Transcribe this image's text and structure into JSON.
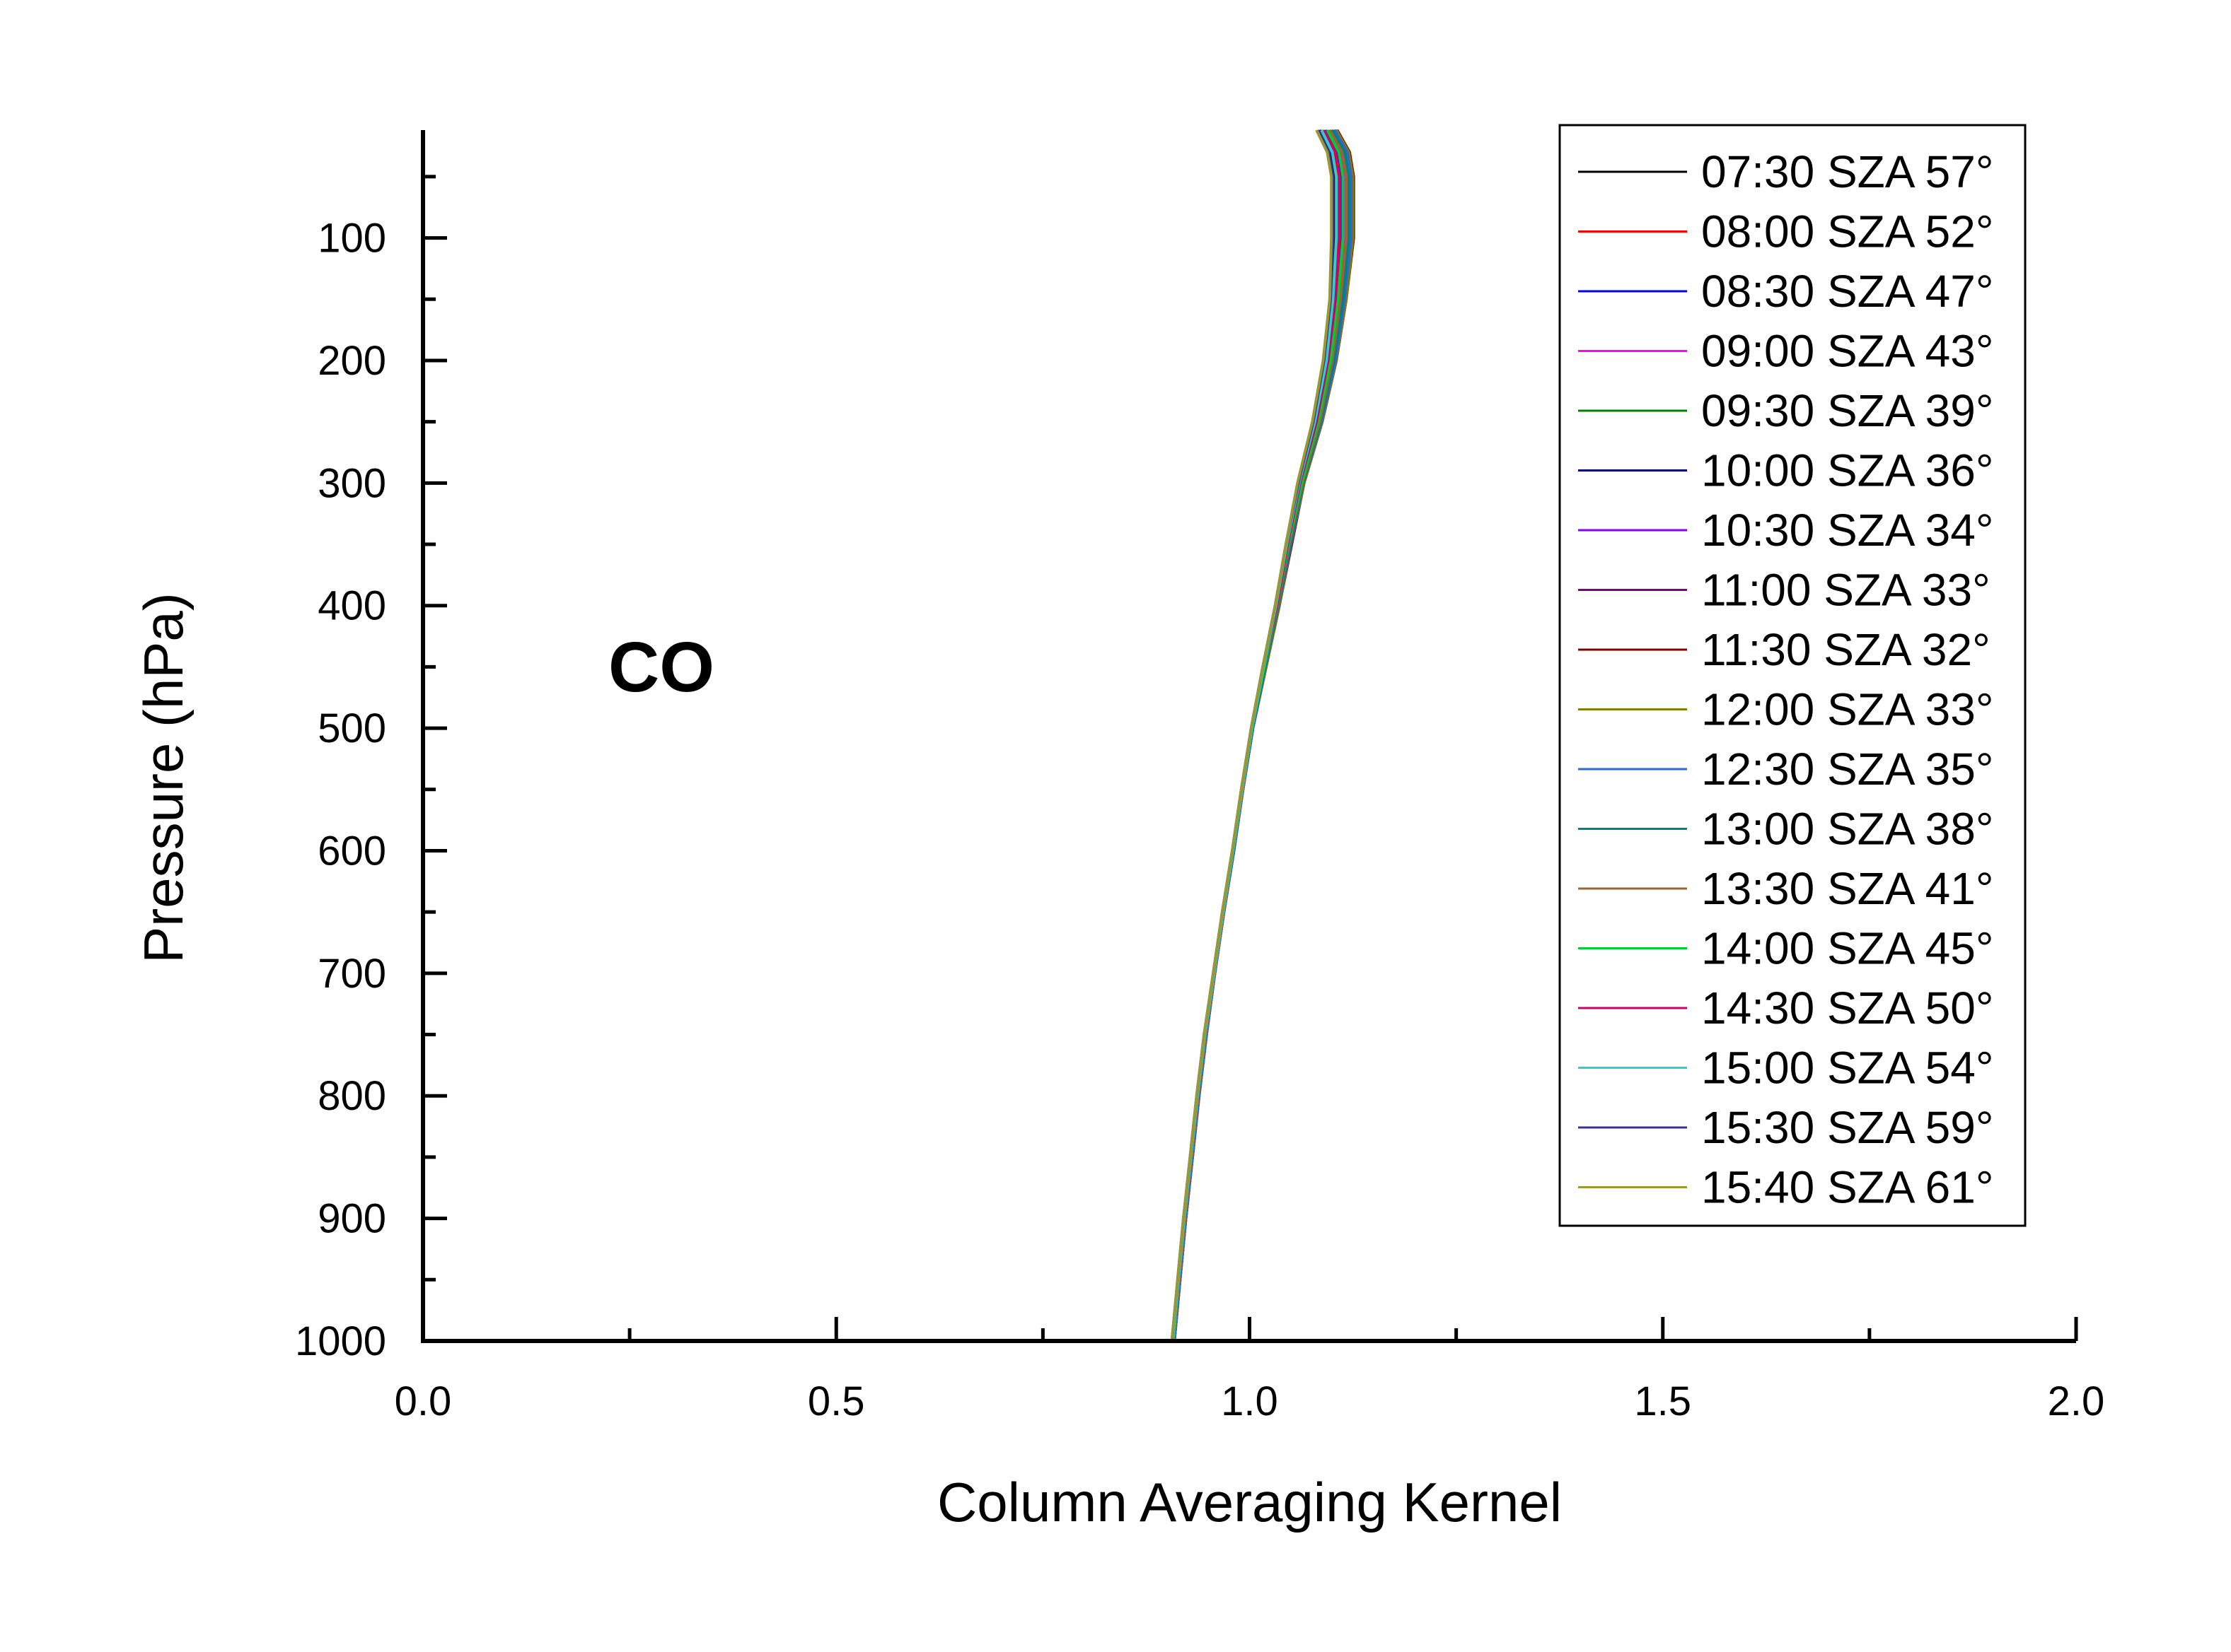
{
  "chart_data": {
    "type": "line",
    "xlabel": "Column Averaging Kernel",
    "ylabel": "Pressure (hPa)",
    "annotation": "CO",
    "xlim": [
      0.0,
      2.0
    ],
    "ylim": [
      12,
      1000
    ],
    "y_inverted": true,
    "x_ticks": [
      "0.0",
      "0.5",
      "1.0",
      "1.5",
      "2.0"
    ],
    "y_ticks": [
      "100",
      "200",
      "300",
      "400",
      "500",
      "600",
      "700",
      "800",
      "900",
      "1000"
    ],
    "legend_position": "top-right",
    "grid": false,
    "pressure": [
      12,
      30,
      50,
      100,
      150,
      200,
      250,
      300,
      350,
      400,
      450,
      500,
      550,
      600,
      650,
      700,
      750,
      800,
      850,
      900,
      950,
      1000
    ],
    "series": [
      {
        "name": "07:30 SZA 57°",
        "color": "#000000",
        "values": [
          1.085,
          1.098,
          1.103,
          1.103,
          1.1,
          1.092,
          1.078,
          1.06,
          1.045,
          1.032,
          1.017,
          1.003,
          0.991,
          0.98,
          0.968,
          0.957,
          0.946,
          0.937,
          0.929,
          0.921,
          0.914,
          0.907
        ]
      },
      {
        "name": "08:00 SZA 52°",
        "color": "#ff0000",
        "values": [
          1.088,
          1.102,
          1.107,
          1.107,
          1.103,
          1.094,
          1.08,
          1.061,
          1.046,
          1.033,
          1.017,
          1.003,
          0.991,
          0.98,
          0.968,
          0.957,
          0.946,
          0.937,
          0.929,
          0.921,
          0.914,
          0.907
        ]
      },
      {
        "name": "08:30 SZA 47°",
        "color": "#0000ff",
        "values": [
          1.092,
          1.106,
          1.111,
          1.111,
          1.106,
          1.097,
          1.082,
          1.062,
          1.047,
          1.033,
          1.018,
          1.003,
          0.991,
          0.98,
          0.968,
          0.957,
          0.946,
          0.937,
          0.929,
          0.921,
          0.914,
          0.908
        ]
      },
      {
        "name": "09:00 SZA 43°",
        "color": "#ff00ff",
        "values": [
          1.096,
          1.11,
          1.115,
          1.115,
          1.109,
          1.099,
          1.084,
          1.063,
          1.048,
          1.034,
          1.018,
          1.003,
          0.992,
          0.98,
          0.969,
          0.958,
          0.947,
          0.938,
          0.93,
          0.922,
          0.915,
          0.908
        ]
      },
      {
        "name": "09:30 SZA 39°",
        "color": "#008000",
        "values": [
          1.099,
          1.114,
          1.119,
          1.119,
          1.112,
          1.101,
          1.085,
          1.064,
          1.049,
          1.035,
          1.019,
          1.004,
          0.992,
          0.981,
          0.969,
          0.958,
          0.947,
          0.938,
          0.93,
          0.922,
          0.915,
          0.908
        ]
      },
      {
        "name": "10:00 SZA 36°",
        "color": "#000080",
        "values": [
          1.102,
          1.117,
          1.122,
          1.122,
          1.114,
          1.103,
          1.086,
          1.065,
          1.05,
          1.035,
          1.019,
          1.004,
          0.992,
          0.981,
          0.969,
          0.958,
          0.947,
          0.938,
          0.93,
          0.922,
          0.915,
          0.909
        ]
      },
      {
        "name": "10:30 SZA 34°",
        "color": "#8000ff",
        "values": [
          1.104,
          1.119,
          1.124,
          1.124,
          1.116,
          1.104,
          1.087,
          1.066,
          1.05,
          1.036,
          1.02,
          1.004,
          0.992,
          0.981,
          0.969,
          0.958,
          0.948,
          0.939,
          0.931,
          0.923,
          0.916,
          0.909
        ]
      },
      {
        "name": "11:00 SZA 33°",
        "color": "#800080",
        "values": [
          1.105,
          1.12,
          1.125,
          1.125,
          1.117,
          1.105,
          1.088,
          1.066,
          1.05,
          1.036,
          1.02,
          1.004,
          0.992,
          0.981,
          0.969,
          0.958,
          0.948,
          0.939,
          0.931,
          0.923,
          0.916,
          0.909
        ]
      },
      {
        "name": "11:30 SZA 32°",
        "color": "#800000",
        "values": [
          1.106,
          1.121,
          1.126,
          1.126,
          1.117,
          1.105,
          1.088,
          1.066,
          1.051,
          1.036,
          1.02,
          1.004,
          0.992,
          0.981,
          0.969,
          0.958,
          0.948,
          0.939,
          0.931,
          0.923,
          0.916,
          0.909
        ]
      },
      {
        "name": "12:00 SZA 33°",
        "color": "#808000",
        "values": [
          1.105,
          1.12,
          1.125,
          1.125,
          1.117,
          1.105,
          1.088,
          1.066,
          1.05,
          1.036,
          1.02,
          1.004,
          0.992,
          0.981,
          0.969,
          0.958,
          0.948,
          0.939,
          0.931,
          0.923,
          0.916,
          0.909
        ]
      },
      {
        "name": "12:30 SZA 35°",
        "color": "#3366cc",
        "values": [
          1.103,
          1.118,
          1.123,
          1.123,
          1.115,
          1.104,
          1.087,
          1.065,
          1.05,
          1.035,
          1.019,
          1.004,
          0.992,
          0.981,
          0.969,
          0.958,
          0.948,
          0.939,
          0.931,
          0.923,
          0.916,
          0.909
        ]
      },
      {
        "name": "13:00 SZA 38°",
        "color": "#008080",
        "values": [
          1.1,
          1.115,
          1.12,
          1.12,
          1.113,
          1.102,
          1.086,
          1.065,
          1.049,
          1.035,
          1.019,
          1.004,
          0.992,
          0.981,
          0.969,
          0.958,
          0.947,
          0.938,
          0.93,
          0.922,
          0.915,
          0.908
        ]
      },
      {
        "name": "13:30 SZA 41°",
        "color": "#996633",
        "values": [
          1.097,
          1.112,
          1.117,
          1.117,
          1.11,
          1.1,
          1.085,
          1.064,
          1.048,
          1.034,
          1.018,
          1.003,
          0.992,
          0.98,
          0.969,
          0.958,
          0.947,
          0.938,
          0.93,
          0.922,
          0.915,
          0.908
        ]
      },
      {
        "name": "14:00 SZA 45°",
        "color": "#00cc33",
        "values": [
          1.094,
          1.108,
          1.113,
          1.113,
          1.107,
          1.098,
          1.083,
          1.063,
          1.047,
          1.033,
          1.018,
          1.003,
          0.991,
          0.98,
          0.968,
          0.957,
          0.946,
          0.937,
          0.929,
          0.921,
          0.914,
          0.908
        ]
      },
      {
        "name": "14:30 SZA 50°",
        "color": "#cc0066",
        "values": [
          1.09,
          1.104,
          1.109,
          1.109,
          1.104,
          1.095,
          1.081,
          1.061,
          1.046,
          1.033,
          1.017,
          1.003,
          0.991,
          0.98,
          0.968,
          0.957,
          0.946,
          0.937,
          0.929,
          0.921,
          0.914,
          0.907
        ]
      },
      {
        "name": "15:00 SZA 54°",
        "color": "#33cccc",
        "values": [
          1.087,
          1.1,
          1.105,
          1.105,
          1.101,
          1.093,
          1.079,
          1.06,
          1.045,
          1.032,
          1.017,
          1.003,
          0.991,
          0.98,
          0.968,
          0.957,
          0.946,
          0.937,
          0.929,
          0.921,
          0.914,
          0.907
        ]
      },
      {
        "name": "15:30 SZA 59°",
        "color": "#333399",
        "values": [
          1.083,
          1.096,
          1.101,
          1.101,
          1.098,
          1.09,
          1.077,
          1.059,
          1.044,
          1.031,
          1.016,
          1.002,
          0.99,
          0.979,
          0.967,
          0.956,
          0.945,
          0.936,
          0.928,
          0.92,
          0.913,
          0.906
        ]
      },
      {
        "name": "15:40 SZA 61°",
        "color": "#999933",
        "values": [
          1.081,
          1.094,
          1.099,
          1.099,
          1.097,
          1.089,
          1.076,
          1.058,
          1.044,
          1.031,
          1.016,
          1.002,
          0.99,
          0.979,
          0.967,
          0.956,
          0.945,
          0.936,
          0.928,
          0.92,
          0.913,
          0.906
        ]
      }
    ]
  }
}
